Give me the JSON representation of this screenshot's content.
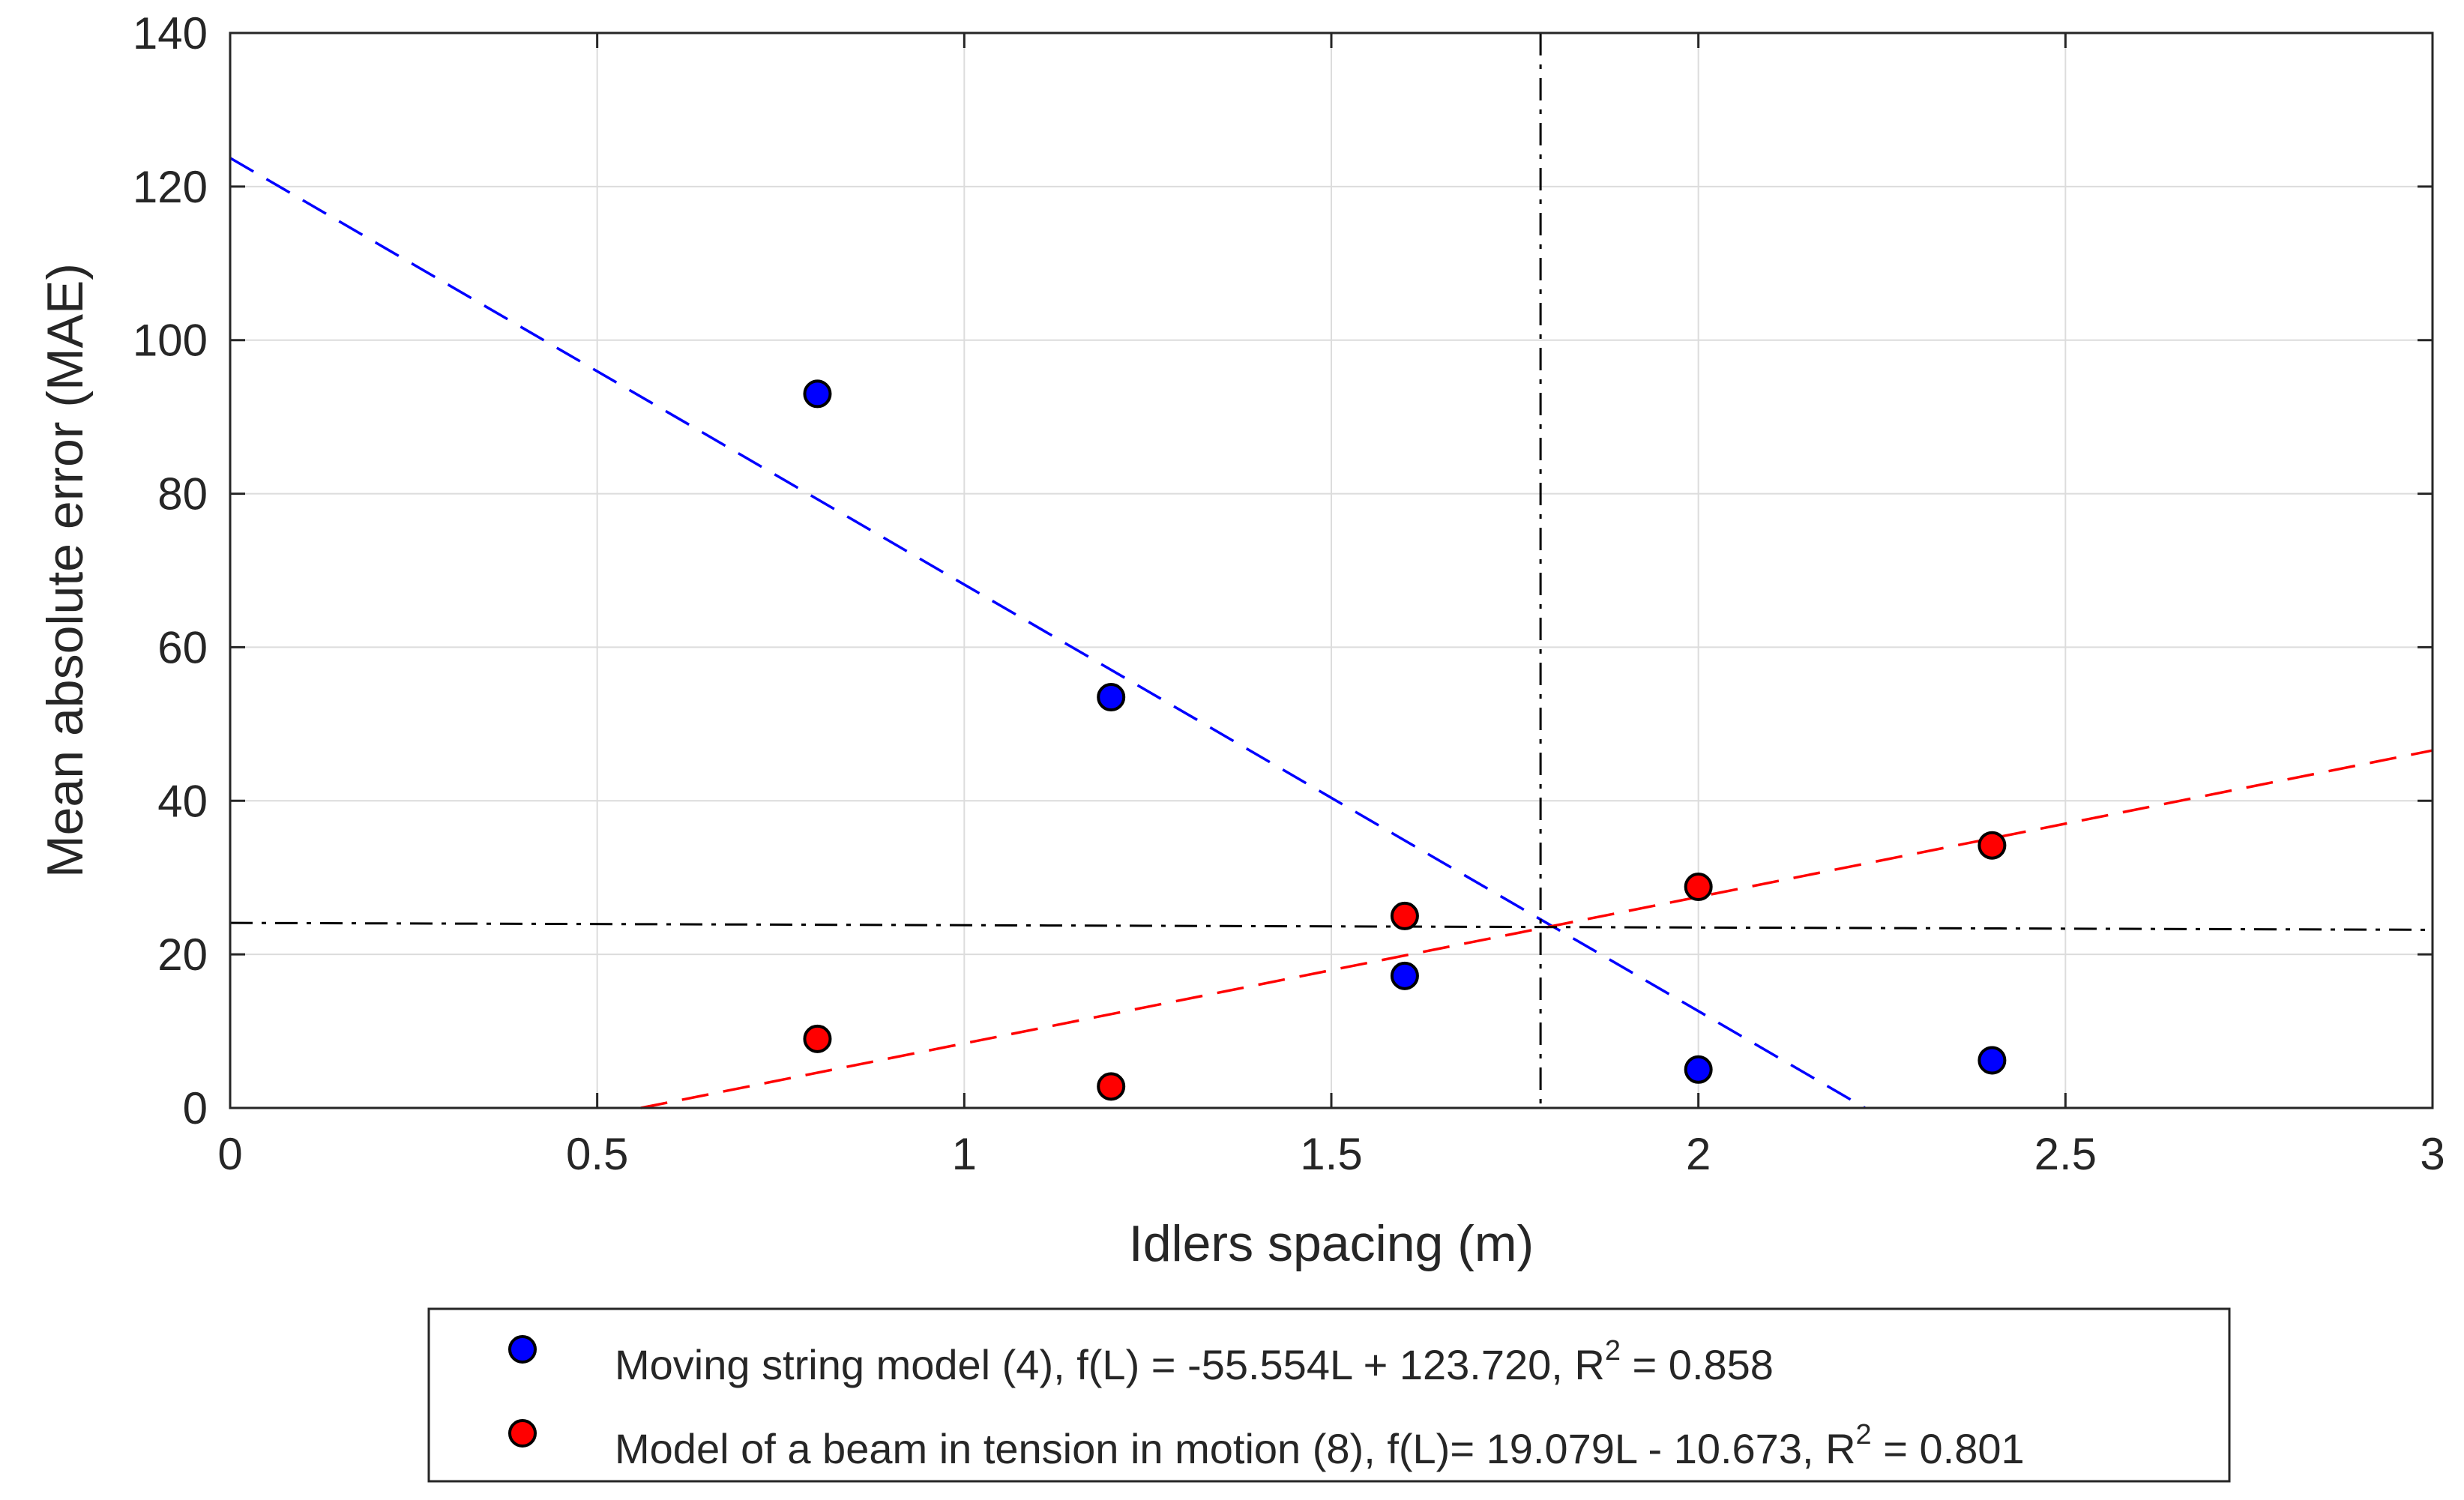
{
  "chart_data": {
    "type": "scatter",
    "title": "",
    "xlabel": "Idlers spacing (m)",
    "ylabel": "Mean absolute error (MAE)",
    "xlim": [
      0,
      3
    ],
    "ylim": [
      0,
      140
    ],
    "grid": true,
    "xticks": [
      0,
      0.5,
      1,
      1.5,
      2,
      2.5,
      3
    ],
    "yticks": [
      0,
      20,
      40,
      60,
      80,
      100,
      120,
      140
    ],
    "xtick_labels": [
      "0",
      "0.5",
      "1",
      "1.5",
      "2",
      "2.5",
      "3"
    ],
    "ytick_labels": [
      "0",
      "20",
      "40",
      "60",
      "80",
      "100",
      "120",
      "140"
    ],
    "series": [
      {
        "name": "Moving string model (4)",
        "color": "#0000ff",
        "points": [
          [
            0.8,
            93
          ],
          [
            1.2,
            53.5
          ],
          [
            1.6,
            17.2
          ],
          [
            2.0,
            5.0
          ],
          [
            2.4,
            6.2
          ]
        ],
        "fit": {
          "slope": -55.554,
          "intercept": 123.72,
          "style": "dashed"
        },
        "legend": {
          "prefix": "Moving string model (4), f(L) = -55.554L + 123.720, R",
          "sup": "2",
          "suffix": " = 0.858"
        }
      },
      {
        "name": "Model of a beam in tension in motion (8)",
        "color": "#ff0000",
        "points": [
          [
            0.8,
            9.0
          ],
          [
            1.2,
            2.8
          ],
          [
            1.6,
            25.0
          ],
          [
            2.0,
            28.8
          ],
          [
            2.4,
            34.2
          ]
        ],
        "fit": {
          "slope": 19.079,
          "intercept": -10.673,
          "style": "dashed"
        },
        "legend": {
          "prefix": "Model of a beam in tension in motion (8), f(L)= 19.079L - 10.673, R",
          "sup": "2",
          "suffix": " = 0.801"
        }
      }
    ],
    "reference_lines": {
      "color": "#000000",
      "style": "dashdot",
      "vertical_x": 1.785,
      "horizontal": {
        "x": [
          0,
          3
        ],
        "y": [
          24.1,
          23.2
        ]
      }
    },
    "legend_position": "bottom-outside"
  }
}
